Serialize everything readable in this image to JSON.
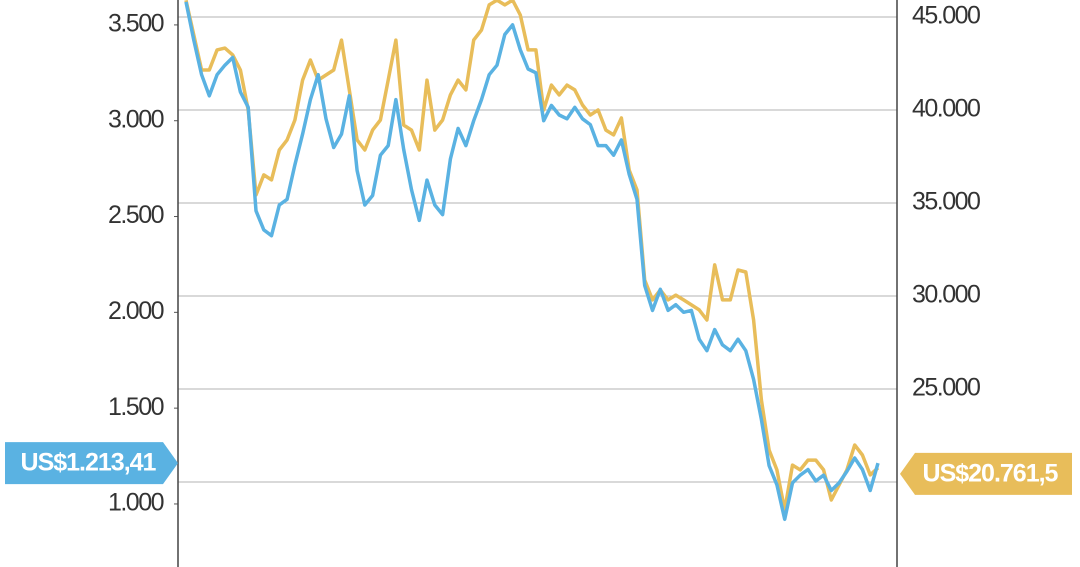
{
  "chart_data": {
    "type": "line",
    "categories": [
      null,
      null,
      null,
      null,
      null,
      null,
      null,
      null,
      null,
      null,
      null,
      null,
      null,
      null,
      null,
      null,
      null,
      null,
      null,
      null,
      null,
      null,
      null,
      null,
      null,
      null,
      null,
      null,
      null,
      null,
      null,
      null,
      null,
      null,
      null,
      null,
      null,
      null,
      null,
      null,
      null,
      null,
      null,
      null,
      null,
      null,
      null,
      null,
      null,
      null,
      null,
      null,
      null,
      null,
      null,
      null,
      null,
      null,
      null,
      null,
      null,
      null,
      null,
      null,
      null,
      null,
      null,
      null,
      null,
      null,
      null,
      null,
      null,
      null,
      null,
      null,
      null,
      null,
      null,
      null,
      null,
      null,
      null,
      null,
      null,
      null,
      null,
      null,
      null,
      null
    ],
    "ylim": [
      671,
      3630
    ],
    "yticks": [
      {
        "value": 1000,
        "label": "1.000"
      },
      {
        "value": 1500,
        "label": "1.500"
      },
      {
        "value": 2000,
        "label": "2.000"
      },
      {
        "value": 2500,
        "label": "2.500"
      },
      {
        "value": 3000,
        "label": "3.000"
      },
      {
        "value": 3500,
        "label": "3.500"
      }
    ],
    "y2lim": [
      15430,
      45914
    ],
    "y2ticks": [
      {
        "value": 20000,
        "label": "20.000"
      },
      {
        "value": 25000,
        "label": "25.000"
      },
      {
        "value": 30000,
        "label": "30.000"
      },
      {
        "value": 35000,
        "label": "35.000"
      },
      {
        "value": 40000,
        "label": "40.000"
      },
      {
        "value": 45000,
        "label": "45.000"
      }
    ],
    "grid": true,
    "series": [
      {
        "color": "#e8bd5a",
        "axis": "y2",
        "last_label": "US$20.761,5",
        "values": [
          45900,
          44030,
          42150,
          42150,
          43230,
          43330,
          42960,
          42150,
          40000,
          35430,
          36510,
          36240,
          37850,
          38390,
          39460,
          41610,
          42690,
          41610,
          41880,
          42150,
          43760,
          41080,
          38390,
          37850,
          38920,
          39460,
          41610,
          43760,
          39190,
          38920,
          37850,
          41610,
          38920,
          39460,
          40810,
          41610,
          41080,
          43760,
          44300,
          45650,
          45910,
          45650,
          45910,
          45110,
          43230,
          43230,
          40000,
          41340,
          40810,
          41340,
          41080,
          40270,
          39730,
          40000,
          38920,
          38660,
          39570,
          36770,
          35700,
          30860,
          29790,
          30320,
          29790,
          30050,
          29790,
          29520,
          29250,
          28710,
          31670,
          29790,
          29790,
          31400,
          31290,
          28710,
          24410,
          21720,
          20650,
          18500,
          20910,
          20650,
          21180,
          21180,
          20650,
          19030,
          19840,
          20650,
          21990,
          21450,
          20380,
          20761.5
        ]
      },
      {
        "color": "#5ab2e2",
        "axis": "y",
        "last_label": "US$1.213,41",
        "values": [
          3620,
          3420,
          3240,
          3130,
          3240,
          3290,
          3330,
          3150,
          3070,
          2530,
          2430,
          2400,
          2560,
          2590,
          2770,
          2930,
          3110,
          3240,
          3010,
          2860,
          2930,
          3130,
          2740,
          2560,
          2610,
          2820,
          2870,
          3110,
          2850,
          2640,
          2480,
          2690,
          2560,
          2510,
          2800,
          2960,
          2870,
          3000,
          3110,
          3240,
          3290,
          3450,
          3500,
          3370,
          3270,
          3250,
          3000,
          3080,
          3030,
          3010,
          3070,
          3010,
          2980,
          2870,
          2870,
          2820,
          2900,
          2720,
          2590,
          2140,
          2010,
          2120,
          2010,
          2040,
          2000,
          2010,
          1860,
          1800,
          1910,
          1830,
          1800,
          1860,
          1800,
          1650,
          1440,
          1200,
          1100,
          920,
          1110,
          1150,
          1180,
          1120,
          1150,
          1070,
          1110,
          1170,
          1240,
          1180,
          1070,
          1213.41
        ]
      }
    ]
  }
}
